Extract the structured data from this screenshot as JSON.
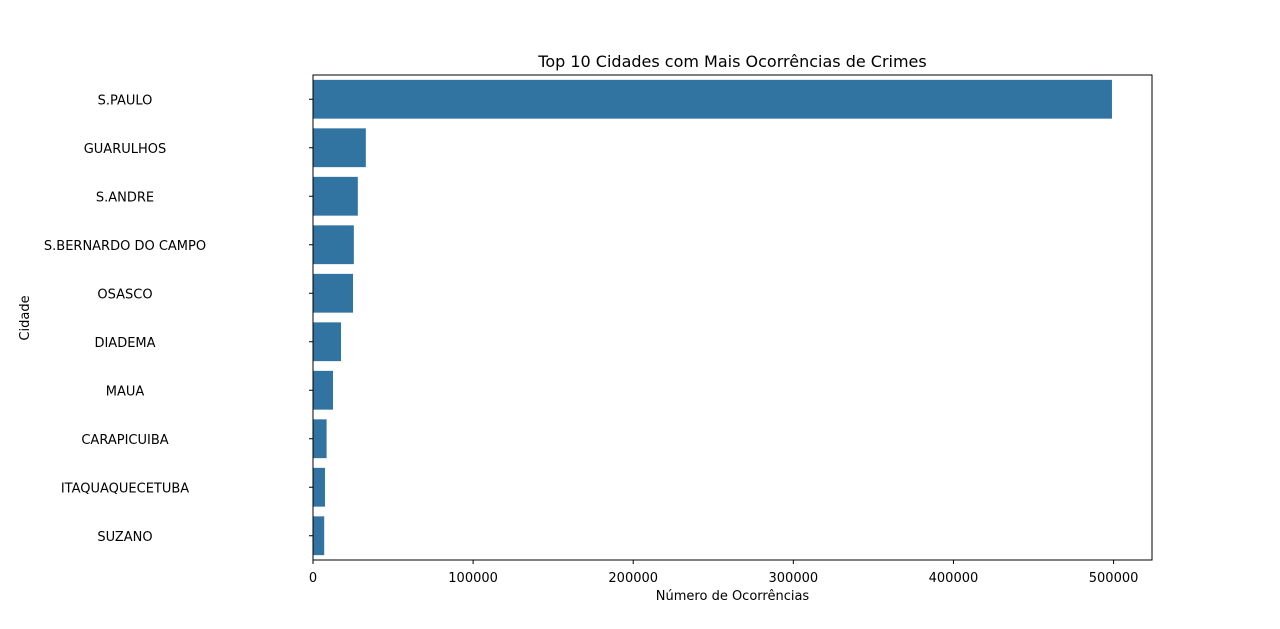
{
  "chart_data": {
    "type": "bar",
    "orientation": "horizontal",
    "title": "Top 10 Cidades com Mais Ocorrências de Crimes",
    "xlabel": "Número de Ocorrências",
    "ylabel": "Cidade",
    "categories": [
      "S.PAULO",
      "GUARULHOS",
      "S.ANDRE",
      "S.BERNARDO DO CAMPO",
      "OSASCO",
      "DIADEMA",
      "MAUA",
      "CARAPICUIBA",
      "ITAQUAQUECETUBA",
      "SUZANO"
    ],
    "values": [
      499000,
      33000,
      28000,
      25500,
      25000,
      17500,
      12500,
      8500,
      7500,
      7000
    ],
    "xlim": [
      0,
      524000
    ],
    "xticks": [
      0,
      100000,
      200000,
      300000,
      400000,
      500000
    ],
    "xtick_labels": [
      "0",
      "100000",
      "200000",
      "300000",
      "400000",
      "500000"
    ],
    "grid": false,
    "bar_color": "#3274a1"
  }
}
